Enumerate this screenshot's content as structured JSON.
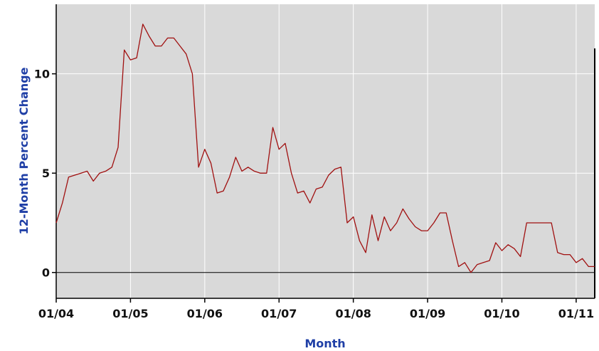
{
  "chart_data": {
    "type": "line",
    "title": "",
    "xlabel": "Month",
    "ylabel": "12-Month Percent Change",
    "ylim": [
      -1.3,
      13.5
    ],
    "xlim": [
      "2004-01",
      "2011-04"
    ],
    "x_tick_labels": [
      "01/04",
      "01/05",
      "01/06",
      "01/07",
      "01/08",
      "01/09",
      "01/10",
      "01/11"
    ],
    "y_tick_labels": [
      "0",
      "5",
      "10"
    ],
    "y_ticks": [
      0,
      5,
      10
    ],
    "grid": true,
    "background_color": "#d9d9d9",
    "grid_color": "#ffffff",
    "line_color": "#a01010",
    "zero_line_color": "#000000",
    "axis_title_color": "#1f3fa6",
    "series": [
      {
        "x": [
          "2004-01",
          "2004-02",
          "2004-03",
          "2004-04",
          "2004-05",
          "2004-06",
          "2004-07",
          "2004-08",
          "2004-09",
          "2004-10",
          "2004-11",
          "2004-12",
          "2005-01",
          "2005-02",
          "2005-03",
          "2005-04",
          "2005-05",
          "2005-06",
          "2005-07",
          "2005-08",
          "2005-09",
          "2005-10",
          "2005-11",
          "2005-12",
          "2006-01",
          "2006-02",
          "2006-03",
          "2006-04",
          "2006-05",
          "2006-06",
          "2006-07",
          "2006-08",
          "2006-09",
          "2006-10",
          "2006-11",
          "2006-12",
          "2007-01",
          "2007-02",
          "2007-03",
          "2007-04",
          "2007-05",
          "2007-06",
          "2007-07",
          "2007-08",
          "2007-09",
          "2007-10",
          "2007-11",
          "2007-12",
          "2008-01",
          "2008-02",
          "2008-03",
          "2008-04",
          "2008-05",
          "2008-06",
          "2008-07",
          "2008-08",
          "2008-09",
          "2008-10",
          "2008-11",
          "2008-12",
          "2009-01",
          "2009-02",
          "2009-03",
          "2009-04",
          "2009-05",
          "2009-06",
          "2009-07",
          "2009-08",
          "2009-09",
          "2009-10",
          "2009-11",
          "2009-12",
          "2010-01",
          "2010-02",
          "2010-03",
          "2010-04",
          "2010-05",
          "2010-06",
          "2010-07",
          "2010-08",
          "2010-09",
          "2010-10",
          "2010-11",
          "2010-12",
          "2011-01",
          "2011-02",
          "2011-03",
          "2011-04"
        ],
        "values": [
          2.5,
          3.5,
          4.8,
          4.9,
          5.0,
          5.1,
          4.6,
          5.0,
          5.1,
          5.3,
          6.3,
          11.2,
          10.7,
          10.8,
          12.5,
          11.9,
          11.4,
          11.4,
          11.8,
          11.8,
          11.4,
          11.0,
          10.0,
          5.3,
          6.2,
          5.5,
          4.0,
          4.1,
          4.8,
          5.8,
          5.1,
          5.3,
          5.1,
          5.0,
          5.0,
          7.3,
          6.2,
          6.5,
          5.0,
          4.0,
          4.1,
          3.5,
          4.2,
          4.3,
          4.9,
          5.2,
          5.3,
          2.5,
          2.8,
          1.6,
          1.0,
          2.9,
          1.6,
          2.8,
          2.1,
          2.5,
          3.2,
          2.7,
          2.3,
          2.1,
          2.1,
          2.5,
          3.0,
          3.0,
          1.6,
          0.3,
          0.5,
          0.0,
          0.4,
          0.5,
          0.6,
          1.5,
          1.1,
          1.4,
          1.2,
          0.8,
          2.5,
          2.5,
          2.5,
          2.5,
          2.5,
          1.0,
          0.9,
          0.9,
          0.5,
          0.7,
          0.3,
          0.3
        ]
      }
    ]
  }
}
